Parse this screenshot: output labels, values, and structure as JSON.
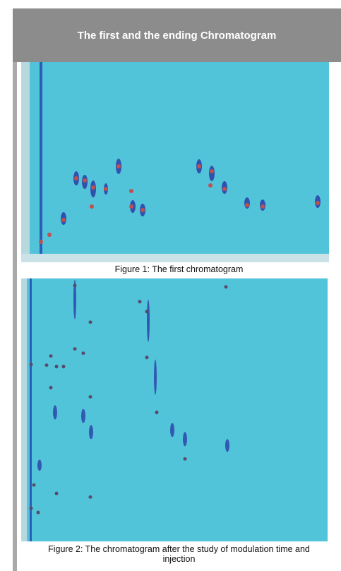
{
  "header": {
    "title": "The first and the ending Chromatogram"
  },
  "figures": [
    {
      "caption": "Figure 1: The first chromatogram"
    },
    {
      "caption": "Figure 2: The chromatogram after the study of modulation time and injection"
    }
  ]
}
